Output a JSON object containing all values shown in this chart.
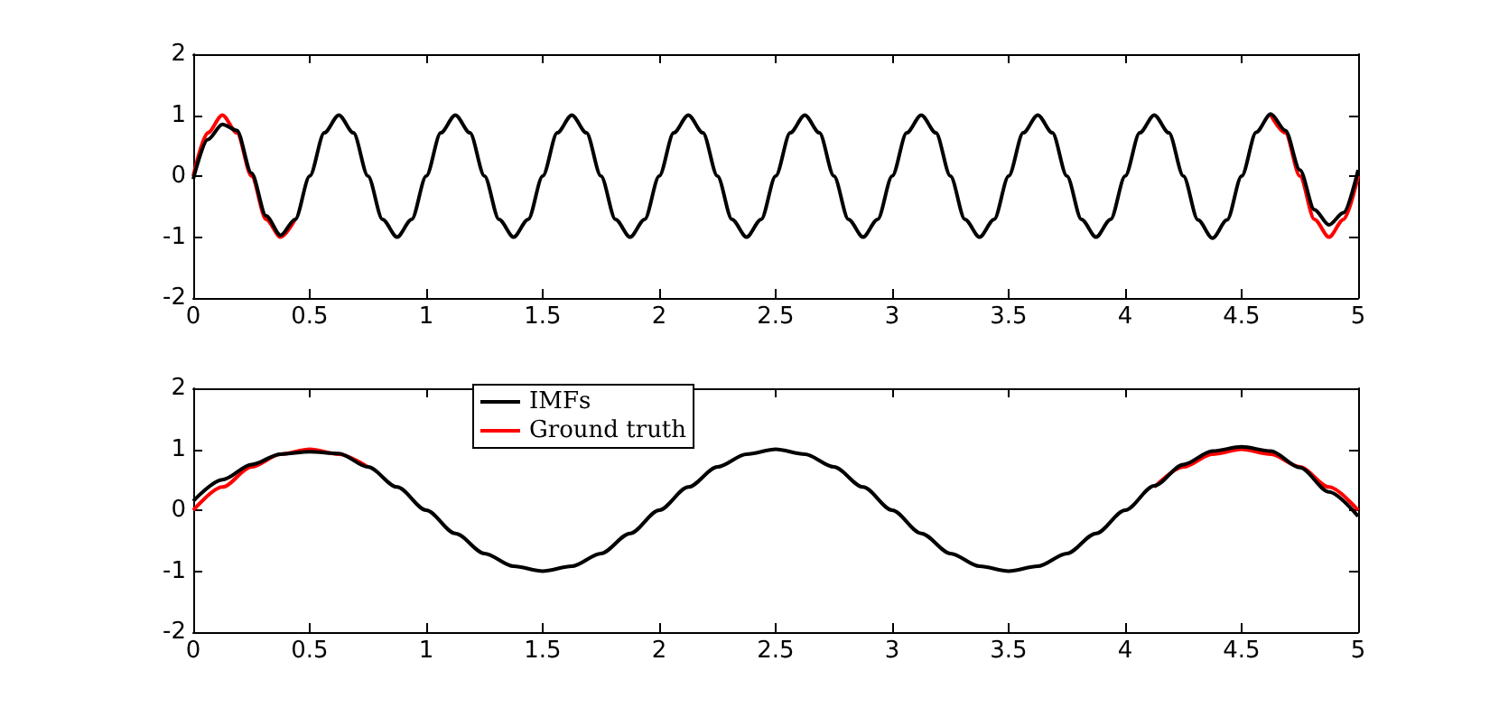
{
  "chart_data": [
    {
      "type": "line",
      "x": [
        0,
        0.0625,
        0.125,
        0.1875,
        0.25,
        0.3125,
        0.375,
        0.4375,
        0.5,
        0.5625,
        0.625,
        0.6875,
        0.75,
        0.8125,
        0.875,
        0.9375,
        1,
        1.0625,
        1.125,
        1.1875,
        1.25,
        1.3125,
        1.375,
        1.4375,
        1.5,
        1.5625,
        1.625,
        1.6875,
        1.75,
        1.8125,
        1.875,
        1.9375,
        2,
        2.0625,
        2.125,
        2.1875,
        2.25,
        2.3125,
        2.375,
        2.4375,
        2.5,
        2.5625,
        2.625,
        2.6875,
        2.75,
        2.8125,
        2.875,
        2.9375,
        3,
        3.0625,
        3.125,
        3.1875,
        3.25,
        3.3125,
        3.375,
        3.4375,
        3.5,
        3.5625,
        3.625,
        3.6875,
        3.75,
        3.8125,
        3.875,
        3.9375,
        4,
        4.0625,
        4.125,
        4.1875,
        4.25,
        4.3125,
        4.375,
        4.4375,
        4.5,
        4.5625,
        4.625,
        4.6875,
        4.75,
        4.8125,
        4.875,
        4.9375,
        5
      ],
      "series": [
        {
          "color": "#000000",
          "values": [
            -0.05,
            0.6,
            0.85,
            0.75,
            0.05,
            -0.65,
            -0.97,
            -0.71,
            0,
            0.71,
            1,
            0.71,
            0,
            -0.71,
            -1,
            -0.71,
            0,
            0.71,
            1,
            0.71,
            0,
            -0.71,
            -1,
            -0.71,
            0,
            0.71,
            1,
            0.71,
            0,
            -0.71,
            -1,
            -0.71,
            0,
            0.71,
            1,
            0.71,
            0,
            -0.71,
            -1,
            -0.71,
            0,
            0.71,
            1,
            0.71,
            0,
            -0.71,
            -1,
            -0.71,
            0,
            0.71,
            1,
            0.71,
            0,
            -0.71,
            -1,
            -0.71,
            0,
            0.71,
            1,
            0.71,
            0,
            -0.71,
            -1,
            -0.71,
            0,
            0.71,
            1,
            0.71,
            0,
            -0.72,
            -1.02,
            -0.72,
            0,
            0.72,
            1.02,
            0.75,
            0.1,
            -0.55,
            -0.8,
            -0.6,
            0.1
          ]
        },
        {
          "color": "#ff0000",
          "values": [
            0,
            0.71,
            1,
            0.71,
            0,
            -0.71,
            -1,
            -0.71,
            null,
            null,
            null,
            null,
            null,
            null,
            null,
            null,
            null,
            null,
            null,
            null,
            null,
            null,
            null,
            null,
            null,
            null,
            null,
            null,
            null,
            null,
            null,
            null,
            null,
            null,
            null,
            null,
            null,
            null,
            null,
            null,
            null,
            null,
            null,
            null,
            null,
            null,
            null,
            null,
            null,
            null,
            null,
            null,
            null,
            null,
            null,
            null,
            null,
            null,
            null,
            null,
            null,
            null,
            null,
            null,
            null,
            null,
            null,
            null,
            null,
            null,
            null,
            null,
            null,
            null,
            1,
            0.71,
            0,
            -0.71,
            -1,
            -0.71,
            0
          ]
        }
      ],
      "xlim": [
        0,
        5
      ],
      "xticks": [
        0,
        0.5,
        1,
        1.5,
        2,
        2.5,
        3,
        3.5,
        4,
        4.5,
        5
      ],
      "ylim": [
        -2,
        2
      ],
      "yticks": [
        -2,
        -1,
        0,
        1,
        2
      ],
      "marker": "none",
      "line_style": "solid",
      "grid": false,
      "legend": false
    },
    {
      "type": "line",
      "x": [
        0,
        0.125,
        0.25,
        0.375,
        0.5,
        0.625,
        0.75,
        0.875,
        1,
        1.125,
        1.25,
        1.375,
        1.5,
        1.625,
        1.75,
        1.875,
        2,
        2.125,
        2.25,
        2.375,
        2.5,
        2.625,
        2.75,
        2.875,
        3,
        3.125,
        3.25,
        3.375,
        3.5,
        3.625,
        3.75,
        3.875,
        4,
        4.125,
        4.25,
        4.375,
        4.5,
        4.625,
        4.75,
        4.875,
        5
      ],
      "series": [
        {
          "name": "IMFs",
          "color": "#000000",
          "values": [
            0.15,
            0.5,
            0.75,
            0.92,
            0.96,
            0.93,
            0.71,
            0.38,
            0,
            -0.38,
            -0.71,
            -0.92,
            -1,
            -0.92,
            -0.71,
            -0.38,
            0,
            0.38,
            0.71,
            0.92,
            1,
            0.92,
            0.71,
            0.38,
            0,
            -0.38,
            -0.71,
            -0.92,
            -1,
            -0.92,
            -0.71,
            -0.38,
            0,
            0.4,
            0.75,
            0.97,
            1.04,
            0.97,
            0.7,
            0.3,
            -0.1
          ]
        },
        {
          "name": "Ground truth",
          "color": "#ff0000",
          "values": [
            0,
            0.38,
            0.71,
            0.92,
            1,
            0.92,
            0.71,
            null,
            null,
            null,
            null,
            null,
            null,
            null,
            null,
            null,
            null,
            null,
            null,
            null,
            null,
            null,
            null,
            null,
            null,
            null,
            null,
            null,
            null,
            null,
            null,
            null,
            null,
            0.38,
            0.71,
            0.92,
            1,
            0.92,
            0.71,
            0.38,
            0
          ]
        }
      ],
      "xlim": [
        0,
        5
      ],
      "xticks": [
        0,
        0.5,
        1,
        1.5,
        2,
        2.5,
        3,
        3.5,
        4,
        4.5,
        5
      ],
      "ylim": [
        -2,
        2
      ],
      "yticks": [
        -2,
        -1,
        0,
        1,
        2
      ],
      "marker": "none",
      "line_style": "solid",
      "grid": false,
      "legend": "top left"
    }
  ]
}
